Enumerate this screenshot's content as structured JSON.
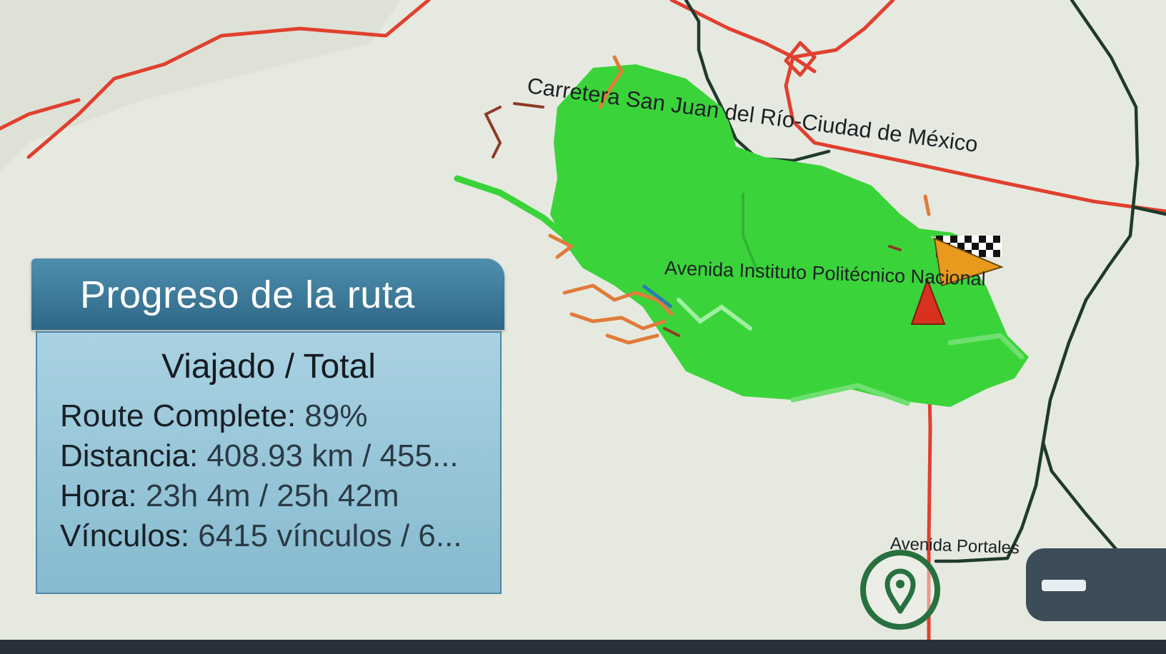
{
  "map": {
    "labels": {
      "highway": "Carretera San Juan del Río-Ciudad de México",
      "avenue_politecnico": "Avenida Instituto Politécnico Nacional",
      "avenue_portales": "Avenida Portales"
    },
    "colors": {
      "background": "#e8ebe3",
      "covered_area": "#33d13a",
      "highway": "#e0402f",
      "road": "#1f3a2a",
      "untraveled": "#e07b3a"
    },
    "markers": [
      "finish-flag",
      "position-arrow",
      "destination-pin"
    ]
  },
  "progress_panel": {
    "title": "Progreso de la ruta",
    "subtitle": "Viajado / Total",
    "stats": {
      "route_complete": {
        "label": "Route Complete:",
        "value": "89%"
      },
      "distance": {
        "label": "Distancia:",
        "value": "408.93 km / 455..."
      },
      "time": {
        "label": "Hora:",
        "value": "23h 4m / 25h 42m"
      },
      "links": {
        "label": "Vínculos:",
        "value": "6415 vínculos / 6..."
      }
    },
    "progress_percent": 89
  },
  "controls": {
    "pin_button_icon": "location-pin-icon",
    "zoom_out_icon": "minus-icon"
  }
}
